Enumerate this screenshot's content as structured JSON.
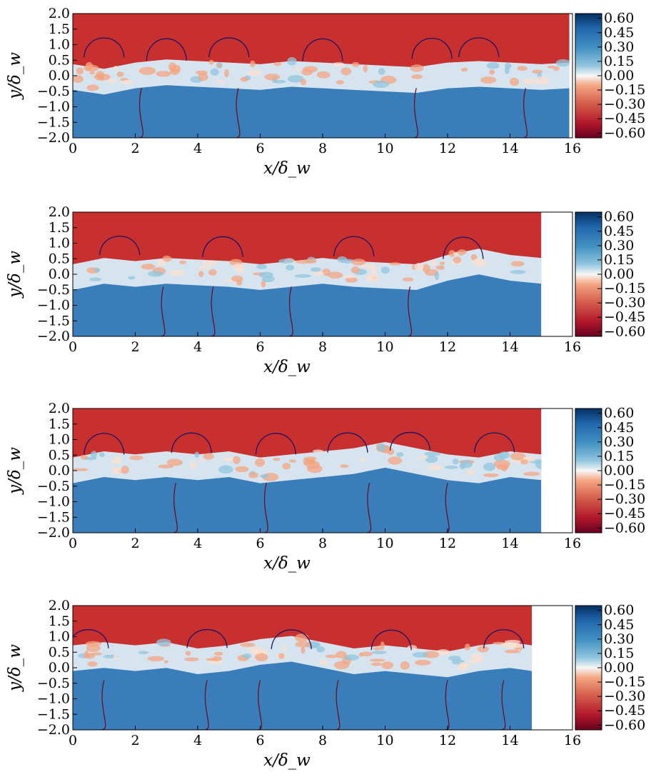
{
  "colors": {
    "red": "#c8302f",
    "blue": "#3a7dbb",
    "white": "#f7f7f7",
    "dark_red": "#6b0017",
    "dark_blue": "#053061",
    "contour_upper": "#1b1464",
    "contour_lower": "#6b1020"
  },
  "chart_data": [
    {
      "type": "heatmap",
      "panel": "1",
      "xlabel": "x/δ_w",
      "ylabel": "y/δ_w",
      "xlim": [
        0,
        16
      ],
      "ylim": [
        -2.0,
        2.0
      ],
      "x_extent": 15.9,
      "xticks": [
        "0",
        "2",
        "4",
        "6",
        "8",
        "10",
        "12",
        "14",
        "16"
      ],
      "yticks": [
        "2.0",
        "1.5",
        "1.0",
        "0.5",
        "0.0",
        "−0.5",
        "−1.0",
        "−1.5",
        "−2.0"
      ],
      "colorbar": {
        "ticks": [
          "0.60",
          "0.45",
          "0.30",
          "0.15",
          "0.00",
          "−0.15",
          "−0.30",
          "−0.45",
          "−0.60"
        ],
        "range": [
          -0.65,
          0.65
        ]
      },
      "interface": [
        [
          0,
          0.05
        ],
        [
          1,
          -0.1
        ],
        [
          2,
          0.1
        ],
        [
          3,
          0.2
        ],
        [
          4,
          0.15
        ],
        [
          5,
          0.1
        ],
        [
          6,
          0.05
        ],
        [
          7,
          0.15
        ],
        [
          8,
          0.1
        ],
        [
          9,
          0.05
        ],
        [
          10,
          0.0
        ],
        [
          11,
          -0.05
        ],
        [
          12,
          0.1
        ],
        [
          13,
          0.15
        ],
        [
          14,
          0.1
        ],
        [
          15,
          0.05
        ],
        [
          15.9,
          0.1
        ]
      ],
      "upper_contour_x": [
        1.0,
        3.0,
        5.0,
        8.0,
        11.5,
        13.0
      ],
      "lower_contour_x": [
        2.2,
        5.3,
        11.0,
        14.5
      ]
    },
    {
      "type": "heatmap",
      "panel": "2",
      "xlabel": "x/δ_w",
      "ylabel": "y/δ_w",
      "xlim": [
        0,
        16
      ],
      "ylim": [
        -2.0,
        2.0
      ],
      "x_extent": 15.0,
      "xticks": [
        "0",
        "2",
        "4",
        "6",
        "8",
        "10",
        "12",
        "14",
        "16"
      ],
      "yticks": [
        "2.0",
        "1.5",
        "1.0",
        "0.5",
        "0.0",
        "−0.5",
        "−1.0",
        "−1.5",
        "−2.0"
      ],
      "colorbar": {
        "ticks": [
          "0.60",
          "0.45",
          "0.30",
          "0.15",
          "0.00",
          "−0.15",
          "−0.30",
          "−0.45",
          "−0.60"
        ],
        "range": [
          -0.65,
          0.65
        ]
      },
      "interface": [
        [
          0,
          0.0
        ],
        [
          1,
          0.2
        ],
        [
          2,
          0.1
        ],
        [
          3,
          0.2
        ],
        [
          4,
          0.15
        ],
        [
          5,
          0.1
        ],
        [
          6,
          0.0
        ],
        [
          7,
          0.1
        ],
        [
          8,
          0.2
        ],
        [
          9,
          0.1
        ],
        [
          10,
          0.05
        ],
        [
          11,
          0.0
        ],
        [
          12,
          0.3
        ],
        [
          13,
          0.5
        ],
        [
          14,
          0.3
        ],
        [
          15,
          0.2
        ]
      ],
      "upper_contour_x": [
        1.5,
        4.8,
        9.0,
        12.5
      ],
      "lower_contour_x": [
        2.9,
        4.5,
        7.0,
        10.8
      ]
    },
    {
      "type": "heatmap",
      "panel": "3",
      "xlabel": "x/δ_w",
      "ylabel": "y/δ_w",
      "xlim": [
        0,
        16
      ],
      "ylim": [
        -2.0,
        2.0
      ],
      "x_extent": 15.0,
      "xticks": [
        "0",
        "2",
        "4",
        "6",
        "8",
        "10",
        "12",
        "14",
        "16"
      ],
      "yticks": [
        "2.0",
        "1.5",
        "1.0",
        "0.5",
        "0.0",
        "−0.5",
        "−1.0",
        "−1.5",
        "−2.0"
      ],
      "colorbar": {
        "ticks": [
          "0.60",
          "0.45",
          "0.30",
          "0.15",
          "0.00",
          "−0.15",
          "−0.30",
          "−0.45",
          "−0.60"
        ],
        "range": [
          -0.65,
          0.65
        ]
      },
      "interface": [
        [
          0,
          0.1
        ],
        [
          1,
          0.3
        ],
        [
          2,
          0.2
        ],
        [
          3,
          0.3
        ],
        [
          4,
          0.2
        ],
        [
          5,
          0.3
        ],
        [
          6,
          0.1
        ],
        [
          7,
          0.2
        ],
        [
          8,
          0.3
        ],
        [
          9,
          0.4
        ],
        [
          10,
          0.6
        ],
        [
          11,
          0.4
        ],
        [
          12,
          0.2
        ],
        [
          13,
          0.1
        ],
        [
          14,
          0.3
        ],
        [
          15,
          0.2
        ]
      ],
      "upper_contour_x": [
        1.0,
        3.8,
        6.5,
        8.8,
        10.8,
        13.5
      ],
      "lower_contour_x": [
        3.3,
        6.2,
        9.5,
        12.0
      ]
    },
    {
      "type": "heatmap",
      "panel": "4",
      "xlabel": "x/δ_w",
      "ylabel": "y/δ_w",
      "xlim": [
        0,
        16
      ],
      "ylim": [
        -2.0,
        2.0
      ],
      "x_extent": 14.7,
      "xticks": [
        "0",
        "2",
        "4",
        "6",
        "8",
        "10",
        "12",
        "14",
        "16"
      ],
      "yticks": [
        "2.0",
        "1.5",
        "1.0",
        "0.5",
        "0.0",
        "−0.5",
        "−1.0",
        "−1.5",
        "−2.0"
      ],
      "colorbar": {
        "ticks": [
          "0.60",
          "0.45",
          "0.30",
          "0.15",
          "0.00",
          "−0.15",
          "−0.30",
          "−0.45",
          "−0.60"
        ],
        "range": [
          -0.65,
          0.65
        ]
      },
      "interface": [
        [
          0,
          0.4
        ],
        [
          1,
          0.5
        ],
        [
          2,
          0.4
        ],
        [
          3,
          0.5
        ],
        [
          4,
          0.3
        ],
        [
          5,
          0.4
        ],
        [
          6,
          0.6
        ],
        [
          7,
          0.7
        ],
        [
          8,
          0.5
        ],
        [
          9,
          0.3
        ],
        [
          10,
          0.4
        ],
        [
          11,
          0.3
        ],
        [
          12,
          0.2
        ],
        [
          13,
          0.4
        ],
        [
          14,
          0.5
        ],
        [
          14.7,
          0.4
        ]
      ],
      "upper_contour_x": [
        0.5,
        4.3,
        7.0,
        10.2,
        13.8
      ],
      "lower_contour_x": [
        1.0,
        4.3,
        6.0,
        8.5,
        12.0,
        13.8
      ]
    }
  ]
}
